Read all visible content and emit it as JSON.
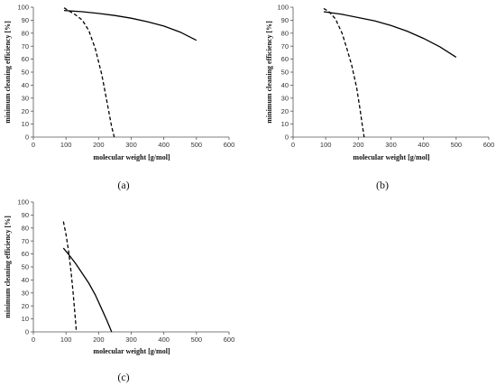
{
  "chart_data": [
    {
      "type": "line",
      "panel_label": "(a)",
      "xlabel": "molecular weight [g/mol]",
      "ylabel": "minimum cleaning efficiency [%]",
      "xlim": [
        0,
        600
      ],
      "ylim": [
        0,
        100
      ],
      "xticks": [
        "0",
        "100",
        "200",
        "300",
        "400",
        "500",
        "600"
      ],
      "yticks": [
        "0",
        "10",
        "20",
        "30",
        "40",
        "50",
        "60",
        "70",
        "80",
        "90",
        "100"
      ],
      "grid": false,
      "series": [
        {
          "style": "solid",
          "x": [
            94,
            150,
            200,
            250,
            300,
            350,
            400,
            450,
            500
          ],
          "y": [
            97.5,
            96.5,
            95.2,
            93.6,
            91.5,
            88.8,
            85.5,
            80.8,
            74.5
          ]
        },
        {
          "style": "dashed",
          "x": [
            94,
            110,
            130,
            150,
            170,
            190,
            210,
            225,
            240,
            248
          ],
          "y": [
            99.5,
            97,
            94,
            90,
            82,
            68,
            48,
            28,
            8,
            0
          ]
        }
      ]
    },
    {
      "type": "line",
      "panel_label": "(b)",
      "xlabel": "molecular weight [g/mol]",
      "ylabel": "minimum cleaning efficiency [%]",
      "xlim": [
        0,
        600
      ],
      "ylim": [
        0,
        100
      ],
      "xticks": [
        "0",
        "100",
        "200",
        "300",
        "400",
        "500",
        "600"
      ],
      "yticks": [
        "0",
        "10",
        "20",
        "30",
        "40",
        "50",
        "60",
        "70",
        "80",
        "90",
        "100"
      ],
      "grid": false,
      "series": [
        {
          "style": "solid",
          "x": [
            94,
            150,
            200,
            250,
            300,
            350,
            400,
            450,
            500
          ],
          "y": [
            96.5,
            94.5,
            92,
            89.5,
            86,
            81.5,
            76,
            69.5,
            61.5
          ]
        },
        {
          "style": "dashed",
          "x": [
            94,
            110,
            130,
            150,
            165,
            180,
            195,
            205,
            213,
            218
          ],
          "y": [
            99,
            96.5,
            91,
            80,
            68,
            55,
            38,
            22,
            8,
            0
          ]
        }
      ]
    },
    {
      "type": "line",
      "panel_label": "(c)",
      "xlabel": "molecular weight [g/mol]",
      "ylabel": "minimum cleaning efficiency [%]",
      "xlim": [
        0,
        600
      ],
      "ylim": [
        0,
        100
      ],
      "xticks": [
        "0",
        "100",
        "200",
        "300",
        "400",
        "500",
        "600"
      ],
      "yticks": [
        "0",
        "10",
        "20",
        "30",
        "40",
        "50",
        "60",
        "70",
        "80",
        "90",
        "100"
      ],
      "grid": false,
      "series": [
        {
          "style": "solid",
          "x": [
            92,
            110,
            130,
            150,
            170,
            190,
            210,
            225,
            240
          ],
          "y": [
            64.5,
            59,
            52.5,
            45,
            37.5,
            28.5,
            17.5,
            9,
            0
          ]
        },
        {
          "style": "dashed",
          "x": [
            92,
            100,
            108,
            116,
            122,
            128,
            132
          ],
          "y": [
            85,
            75,
            62,
            45,
            30,
            12,
            0
          ]
        }
      ]
    }
  ]
}
